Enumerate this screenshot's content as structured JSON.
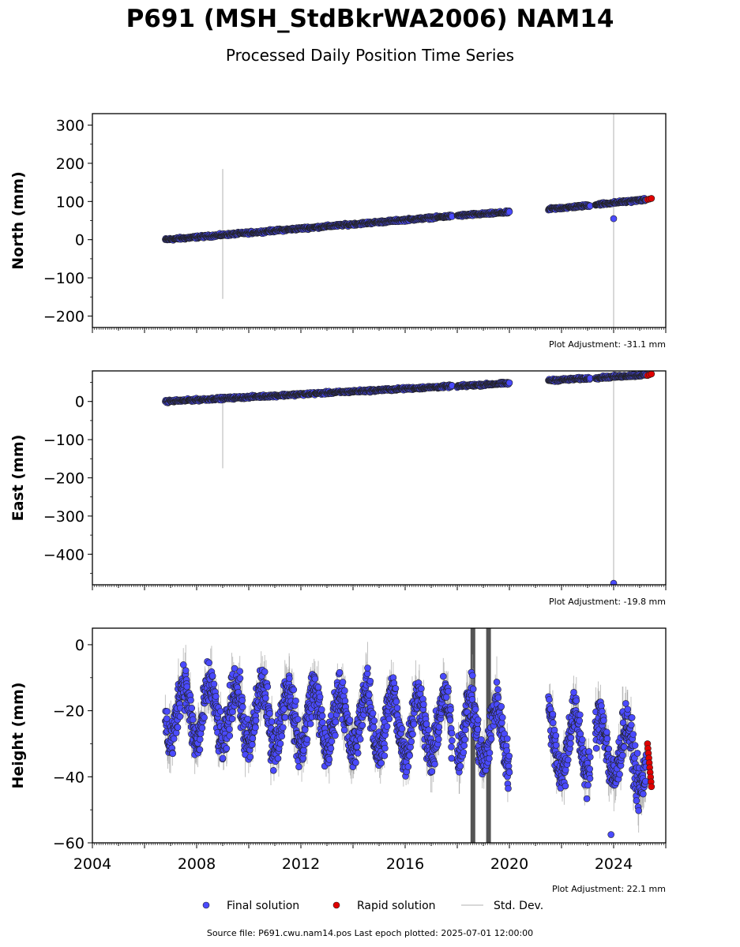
{
  "header": {
    "title": "P691 (MSH_StdBkrWA2006) NAM14",
    "subtitle": "Processed Daily Position Time Series"
  },
  "footer": {
    "text": "Source file: P691.cwu.nam14.pos  Last epoch plotted: 2025-07-01 12:00:00"
  },
  "legend": {
    "final_label": "Final solution",
    "rapid_label": "Rapid solution",
    "std_label": "Std. Dev."
  },
  "colors": {
    "final": "#4a4aff",
    "rapid": "#e00000",
    "std": "#cccccc",
    "edge": "#222222"
  },
  "chart_data": [
    {
      "type": "scatter",
      "ylabel": "North (mm)",
      "ylim": [
        -230,
        330
      ],
      "xlim": [
        2004.0,
        2026.0
      ],
      "yticks": [
        300,
        200,
        100,
        0,
        -100,
        -200
      ],
      "adjustment": "Plot Adjustment: -31.1 mm",
      "segments": [
        {
          "x": [
            2006.8,
            2017.8
          ],
          "y": [
            0,
            62
          ]
        },
        {
          "x": [
            2018.0,
            2020.0
          ],
          "y": [
            63,
            72
          ]
        },
        {
          "x": [
            2021.5,
            2023.1
          ],
          "y": [
            80,
            90
          ]
        },
        {
          "x": [
            2023.3,
            2025.25
          ],
          "y": [
            92,
            105
          ]
        }
      ],
      "noise": 2.5,
      "outliers": [
        {
          "x": 2024.0,
          "y": 55
        }
      ],
      "std_spikes": [
        {
          "x": 2009.0,
          "y1": 185,
          "y2": -155
        },
        {
          "x": 2024.0,
          "y1": 330,
          "y2": -230
        }
      ],
      "rapid": {
        "x": [
          2025.3,
          2025.45
        ],
        "y": [
          105,
          108
        ]
      }
    },
    {
      "type": "scatter",
      "ylabel": "East (mm)",
      "ylim": [
        -480,
        80
      ],
      "xlim": [
        2004.0,
        2026.0
      ],
      "yticks": [
        0,
        -100,
        -200,
        -300,
        -400
      ],
      "adjustment": "Plot Adjustment: -19.8 mm",
      "segments": [
        {
          "x": [
            2006.8,
            2017.8
          ],
          "y": [
            0,
            40
          ]
        },
        {
          "x": [
            2018.0,
            2020.0
          ],
          "y": [
            40,
            48
          ]
        },
        {
          "x": [
            2021.5,
            2023.1
          ],
          "y": [
            55,
            61
          ]
        },
        {
          "x": [
            2023.3,
            2025.25
          ],
          "y": [
            62,
            70
          ]
        }
      ],
      "noise": 2.5,
      "outliers": [
        {
          "x": 2024.0,
          "y": -476
        }
      ],
      "std_spikes": [
        {
          "x": 2009.0,
          "y1": 20,
          "y2": -175
        },
        {
          "x": 2024.0,
          "y1": 80,
          "y2": -480
        }
      ],
      "rapid": {
        "x": [
          2025.3,
          2025.45
        ],
        "y": [
          68,
          72
        ]
      }
    },
    {
      "type": "scatter",
      "ylabel": "Height (mm)",
      "ylim": [
        -60,
        5
      ],
      "xlim": [
        2004.0,
        2026.0
      ],
      "yticks": [
        0,
        -20,
        -40,
        -60
      ],
      "adjustment": "Plot Adjustment: 22.1 mm",
      "segments": [
        {
          "x": [
            2006.8,
            2017.8
          ],
          "y": [
            -20,
            -25
          ]
        },
        {
          "x": [
            2018.0,
            2020.0
          ],
          "y": [
            -25,
            -28
          ]
        },
        {
          "x": [
            2021.5,
            2023.1
          ],
          "y": [
            -30,
            -30
          ]
        },
        {
          "x": [
            2023.3,
            2025.25
          ],
          "y": [
            -30,
            -35
          ]
        }
      ],
      "seasonal_amplitude": 9,
      "noise": 5,
      "outliers": [
        {
          "x": 2023.9,
          "y": -57.5
        }
      ],
      "std_spikes": [
        {
          "x": 2018.6,
          "y1": 5,
          "y2": -60
        },
        {
          "x": 2019.2,
          "y1": 5,
          "y2": -60
        }
      ],
      "rapid": {
        "x": [
          2025.3,
          2025.45
        ],
        "y": [
          -30,
          -43
        ]
      },
      "xticks": [
        "2004",
        "2008",
        "2012",
        "2016",
        "2020",
        "2024"
      ]
    }
  ]
}
